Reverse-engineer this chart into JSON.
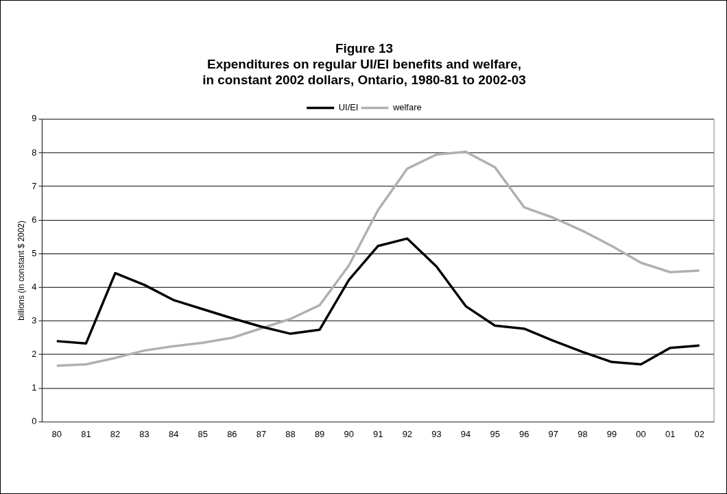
{
  "chart_data": {
    "type": "line",
    "title": "Figure 13\nExpenditures on regular UI/EI benefits and welfare,\nin constant 2002 dollars, Ontario, 1980-81 to 2002-03",
    "ylabel": "billions (in constant $ 2002)",
    "categories": [
      "80",
      "81",
      "82",
      "83",
      "84",
      "85",
      "86",
      "87",
      "88",
      "89",
      "90",
      "91",
      "92",
      "93",
      "94",
      "95",
      "96",
      "97",
      "98",
      "99",
      "00",
      "01",
      "02"
    ],
    "series": [
      {
        "name": "UI/EI",
        "color": "#000000",
        "values": [
          2.4,
          2.33,
          4.42,
          4.07,
          3.62,
          3.35,
          3.08,
          2.83,
          2.62,
          2.74,
          4.22,
          5.23,
          5.45,
          4.62,
          3.44,
          2.86,
          2.77,
          2.41,
          2.08,
          1.78,
          1.71,
          2.2,
          2.27
        ]
      },
      {
        "name": "welfare",
        "color": "#b0b0b0",
        "values": [
          1.67,
          1.71,
          1.9,
          2.12,
          2.25,
          2.35,
          2.5,
          2.78,
          3.06,
          3.47,
          4.65,
          6.3,
          7.53,
          7.95,
          8.03,
          7.57,
          6.38,
          6.07,
          5.68,
          5.23,
          4.73,
          4.45,
          4.5
        ]
      }
    ],
    "ylim": [
      0,
      9
    ],
    "yticks": [
      0,
      1,
      2,
      3,
      4,
      5,
      6,
      7,
      8,
      9
    ],
    "grid": "y",
    "legend": "top",
    "marker": "none",
    "line_style": "solid"
  }
}
